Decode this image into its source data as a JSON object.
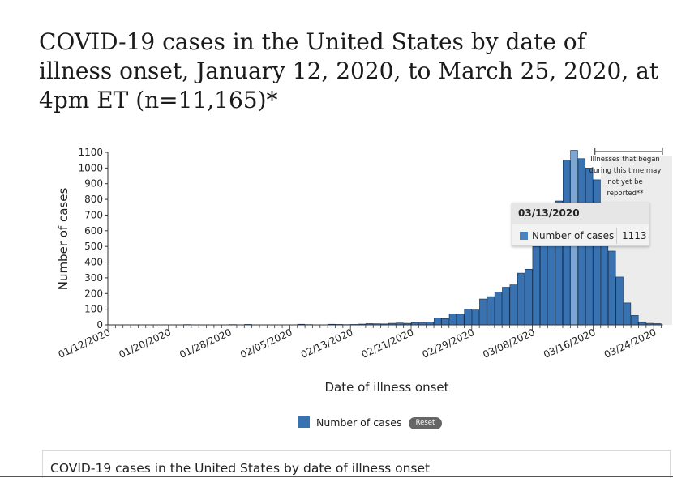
{
  "title": "COVID-19 cases in the United States by date of illness onset, January 12, 2020, to March 25, 2020, at 4pm ET (n=11,165)*",
  "chart_data": {
    "type": "bar",
    "x_start": "01/12/2020",
    "x_end": "03/24/2020",
    "x_ticks": [
      "01/12/2020",
      "01/20/2020",
      "01/28/2020",
      "02/05/2020",
      "02/13/2020",
      "02/21/2020",
      "02/29/2020",
      "03/08/2020",
      "03/16/2020",
      "03/24/2020"
    ],
    "y_ticks": [
      0,
      100,
      200,
      300,
      400,
      500,
      600,
      700,
      800,
      900,
      1000,
      1100
    ],
    "ylim": [
      0,
      1100
    ],
    "xlabel": "Date of illness onset",
    "ylabel": "Number of cases",
    "series": [
      {
        "name": "Number of cases",
        "color": "#3872b0",
        "values": [
          [
            1,
            1
          ],
          [
            3,
            1
          ],
          [
            5,
            1
          ],
          [
            10,
            2
          ],
          [
            14,
            1
          ],
          [
            16,
            2
          ],
          [
            18,
            3
          ],
          [
            22,
            1
          ],
          [
            25,
            4
          ],
          [
            26,
            2
          ],
          [
            28,
            1
          ],
          [
            29,
            4
          ],
          [
            30,
            3
          ],
          [
            31,
            2
          ],
          [
            32,
            3
          ],
          [
            33,
            5
          ],
          [
            34,
            8
          ],
          [
            35,
            7
          ],
          [
            36,
            6
          ],
          [
            37,
            10
          ],
          [
            38,
            12
          ],
          [
            39,
            10
          ],
          [
            40,
            15
          ],
          [
            41,
            13
          ],
          [
            42,
            18
          ],
          [
            43,
            45
          ],
          [
            44,
            40
          ],
          [
            45,
            70
          ],
          [
            46,
            68
          ],
          [
            47,
            100
          ],
          [
            48,
            95
          ],
          [
            49,
            165
          ],
          [
            50,
            180
          ],
          [
            51,
            210
          ],
          [
            52,
            240
          ],
          [
            53,
            255
          ],
          [
            54,
            330
          ],
          [
            55,
            355
          ],
          [
            56,
            500
          ],
          [
            57,
            570
          ],
          [
            58,
            640
          ],
          [
            59,
            790
          ],
          [
            60,
            1050
          ],
          [
            61,
            1113
          ],
          [
            62,
            1060
          ],
          [
            63,
            1000
          ],
          [
            64,
            925
          ],
          [
            65,
            700
          ],
          [
            66,
            470
          ],
          [
            67,
            305
          ],
          [
            68,
            140
          ],
          [
            69,
            60
          ],
          [
            70,
            15
          ],
          [
            71,
            10
          ],
          [
            72,
            8
          ]
        ],
        "highlight_day": 61
      }
    ],
    "annotation": "Illnesses that began during this time may not yet be reported**",
    "shaded_from_day": 65,
    "grid": false,
    "legend_position": "bottom-center"
  },
  "tooltip": {
    "date": "03/13/2020",
    "series_label": "Number of cases",
    "value": "1113"
  },
  "legend": {
    "label": "Number of cases",
    "reset_label": "Reset"
  },
  "table": {
    "title": "COVID-19 cases in the United States by date of illness onset"
  }
}
